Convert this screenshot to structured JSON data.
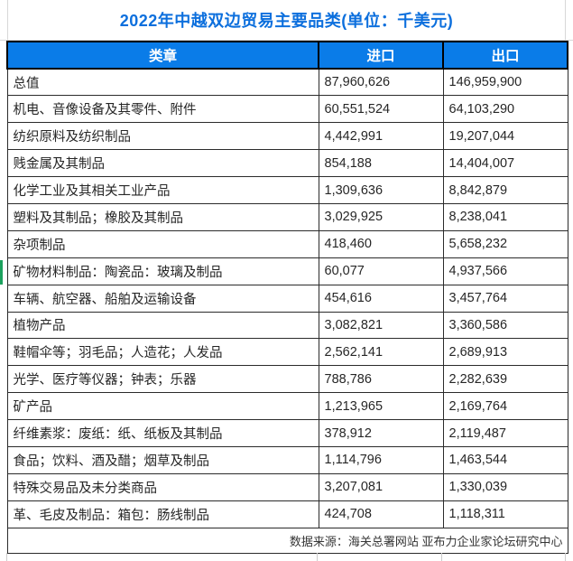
{
  "title": "2022年中越双边贸易主要品类(单位：千美元)",
  "header": {
    "category": "类章",
    "import": "进口",
    "export": "出口"
  },
  "rows": [
    {
      "category": "总值",
      "import": "87,960,626",
      "export": "146,959,900"
    },
    {
      "category": "机电、音像设备及其零件、附件",
      "import": "60,551,524",
      "export": "64,103,290"
    },
    {
      "category": "纺织原料及纺织制品",
      "import": "4,442,991",
      "export": "19,207,044"
    },
    {
      "category": "贱金属及其制品",
      "import": "854,188",
      "export": "14,404,007"
    },
    {
      "category": "化学工业及其相关工业产品",
      "import": "1,309,636",
      "export": "8,842,879"
    },
    {
      "category": "塑料及其制品；橡胶及其制品",
      "import": "3,029,925",
      "export": "8,238,041"
    },
    {
      "category": "杂项制品",
      "import": "418,460",
      "export": "5,658,232"
    },
    {
      "category": "矿物材料制品：陶瓷品：玻璃及制品",
      "import": "60,077",
      "export": "4,937,566"
    },
    {
      "category": "车辆、航空器、船舶及运输设备",
      "import": "454,616",
      "export": "3,457,764"
    },
    {
      "category": "植物产品",
      "import": "3,082,821",
      "export": "3,360,586"
    },
    {
      "category": "鞋帽伞等；羽毛品；人造花；人发品",
      "import": "2,562,141",
      "export": "2,689,913"
    },
    {
      "category": "光学、医疗等仪器；钟表；乐器",
      "import": "788,786",
      "export": "2,282,639"
    },
    {
      "category": "矿产品",
      "import": "1,213,965",
      "export": "2,169,764"
    },
    {
      "category": "纤维素浆：废纸：纸、纸板及其制品",
      "import": "378,912",
      "export": "2,119,487"
    },
    {
      "category": "食品；饮料、酒及醋；烟草及制品",
      "import": "1,114,796",
      "export": "1,463,544"
    },
    {
      "category": "特殊交易品及未分类商品",
      "import": "3,207,081",
      "export": "1,330,039"
    },
    {
      "category": "革、毛皮及制品：箱包：肠线制品",
      "import": "424,708",
      "export": "1,118,311"
    }
  ],
  "footer": {
    "source": "数据来源：海关总署网站 亚布力企业家论坛研究中心"
  },
  "colors": {
    "title_blue": "#0c6fdd",
    "header_blue": "#0a7ce8",
    "selection_green": "#1ca15e",
    "gridline_gray": "#d8d8d8",
    "border_dark": "#2b2b2b"
  },
  "chart_data": {
    "type": "table",
    "title": "2022年中越双边贸易主要品类(单位：千美元)",
    "columns": [
      "类章",
      "进口",
      "出口"
    ],
    "unit": "千美元",
    "categories": [
      "总值",
      "机电、音像设备及其零件、附件",
      "纺织原料及纺织制品",
      "贱金属及其制品",
      "化学工业及其相关工业产品",
      "塑料及其制品；橡胶及其制品",
      "杂项制品",
      "矿物材料制品：陶瓷品：玻璃及制品",
      "车辆、航空器、船舶及运输设备",
      "植物产品",
      "鞋帽伞等；羽毛品；人造花；人发品",
      "光学、医疗等仪器；钟表；乐器",
      "矿产品",
      "纤维素浆：废纸：纸、纸板及其制品",
      "食品；饮料、酒及醋；烟草及制品",
      "特殊交易品及未分类商品",
      "革、毛皮及制品：箱包：肠线制品"
    ],
    "series": [
      {
        "name": "进口",
        "values": [
          87960626,
          60551524,
          4442991,
          854188,
          1309636,
          3029925,
          418460,
          60077,
          454616,
          3082821,
          2562141,
          788786,
          1213965,
          378912,
          1114796,
          3207081,
          424708
        ]
      },
      {
        "name": "出口",
        "values": [
          146959900,
          64103290,
          19207044,
          14404007,
          8842879,
          8238041,
          5658232,
          4937566,
          3457764,
          3360586,
          2689913,
          2282639,
          2169764,
          2119487,
          1463544,
          1330039,
          1118311
        ]
      }
    ],
    "source": "数据来源：海关总署网站 亚布力企业家论坛研究中心"
  }
}
